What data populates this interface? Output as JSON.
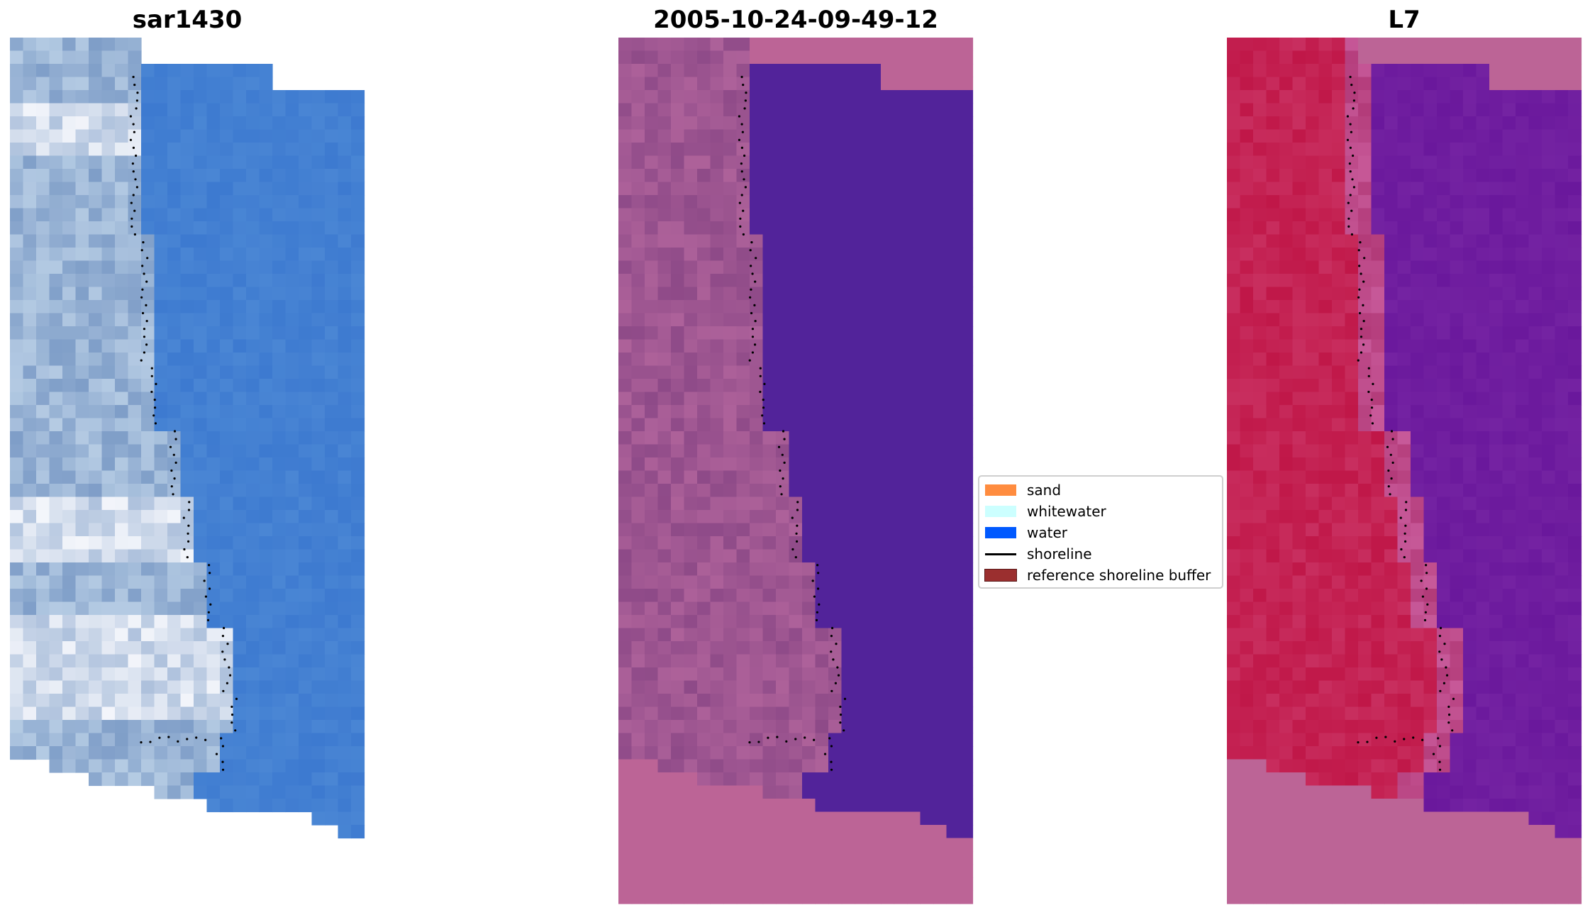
{
  "panels": [
    {
      "title": "sar1430"
    },
    {
      "title": "2005-10-24-09-49-12"
    },
    {
      "title": "L7"
    }
  ],
  "legend": {
    "items": [
      {
        "label": "sand",
        "kind": "patch",
        "color": "#ff8c3f"
      },
      {
        "label": "whitewater",
        "kind": "patch",
        "color": "#ccffff"
      },
      {
        "label": "water",
        "kind": "patch",
        "color": "#0059ff"
      },
      {
        "label": "shoreline",
        "kind": "line",
        "color": "#000000"
      },
      {
        "label": "reference shoreline buffer",
        "kind": "patch",
        "color": "#9b2f2f",
        "edge": "#5a1a1a"
      }
    ]
  },
  "colors": {
    "rgb_water": "#4a86d4",
    "rgb_land_light": "#b7cde6",
    "class_water": "#52239a",
    "class_mask": "#bc6496",
    "class_land": "#8e4a88",
    "nir_water": "#6a189c",
    "nir_land": "#c01748",
    "nir_mask": "#bc6496"
  }
}
